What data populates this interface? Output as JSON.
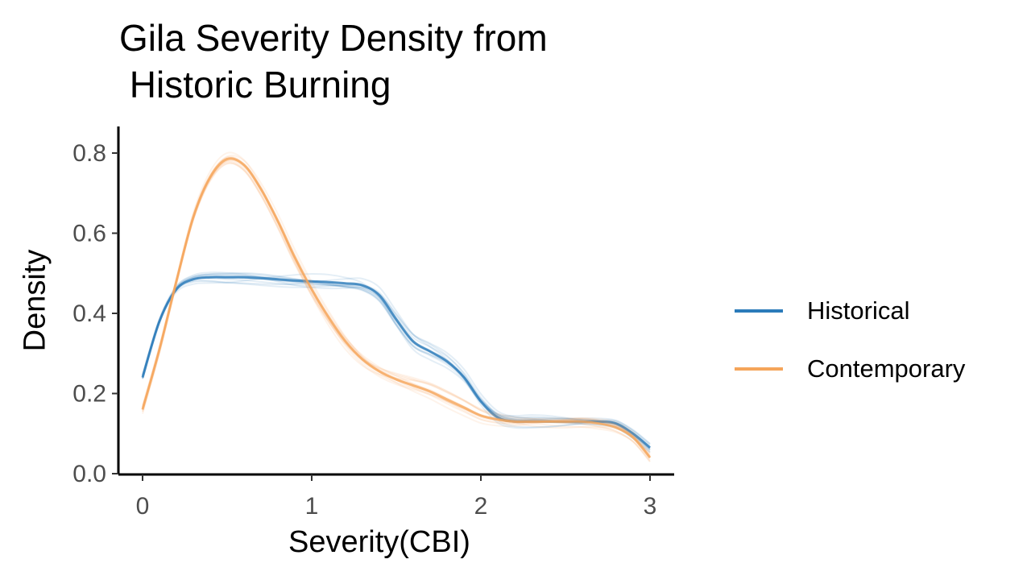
{
  "chart_data": {
    "type": "line",
    "title": "Gila Severity Density from\n Historic Burning",
    "xlabel": "Severity(CBI)",
    "ylabel": "Density",
    "xlim": [
      0,
      3
    ],
    "ylim": [
      0,
      0.85
    ],
    "x_ticks": [
      0,
      1,
      2,
      3
    ],
    "x_tick_labels": [
      "0",
      "1",
      "2",
      "3"
    ],
    "y_ticks": [
      0,
      0.2,
      0.4,
      0.6,
      0.8
    ],
    "y_tick_labels": [
      "0.0",
      "0.2",
      "0.4",
      "0.6",
      "0.8"
    ],
    "grid": false,
    "legend_position": "right",
    "note": "Each series is drawn as many overlapping semi-transparent replicate curves.",
    "series": [
      {
        "name": "Historical",
        "color": "#2b7bba",
        "x": [
          0,
          0.1,
          0.2,
          0.3,
          0.4,
          0.5,
          0.6,
          0.7,
          0.8,
          0.9,
          1.0,
          1.1,
          1.2,
          1.3,
          1.4,
          1.5,
          1.6,
          1.7,
          1.8,
          1.9,
          2.0,
          2.1,
          2.2,
          2.3,
          2.4,
          2.5,
          2.6,
          2.7,
          2.8,
          2.9,
          3.0
        ],
        "values": [
          0.24,
          0.38,
          0.46,
          0.485,
          0.49,
          0.49,
          0.49,
          0.488,
          0.485,
          0.482,
          0.48,
          0.478,
          0.475,
          0.47,
          0.445,
          0.385,
          0.33,
          0.305,
          0.28,
          0.24,
          0.18,
          0.14,
          0.13,
          0.13,
          0.13,
          0.13,
          0.13,
          0.13,
          0.125,
          0.1,
          0.065
        ]
      },
      {
        "name": "Contemporary",
        "color": "#f5a55a",
        "x": [
          0,
          0.1,
          0.2,
          0.3,
          0.4,
          0.5,
          0.6,
          0.7,
          0.8,
          0.9,
          1.0,
          1.1,
          1.2,
          1.3,
          1.4,
          1.5,
          1.6,
          1.7,
          1.8,
          1.9,
          2.0,
          2.1,
          2.2,
          2.3,
          2.4,
          2.5,
          2.6,
          2.7,
          2.8,
          2.9,
          3.0
        ],
        "values": [
          0.16,
          0.31,
          0.48,
          0.64,
          0.74,
          0.785,
          0.77,
          0.71,
          0.63,
          0.54,
          0.46,
          0.39,
          0.33,
          0.285,
          0.255,
          0.235,
          0.22,
          0.205,
          0.185,
          0.165,
          0.145,
          0.135,
          0.13,
          0.13,
          0.13,
          0.13,
          0.13,
          0.125,
          0.115,
          0.09,
          0.04
        ]
      }
    ]
  }
}
